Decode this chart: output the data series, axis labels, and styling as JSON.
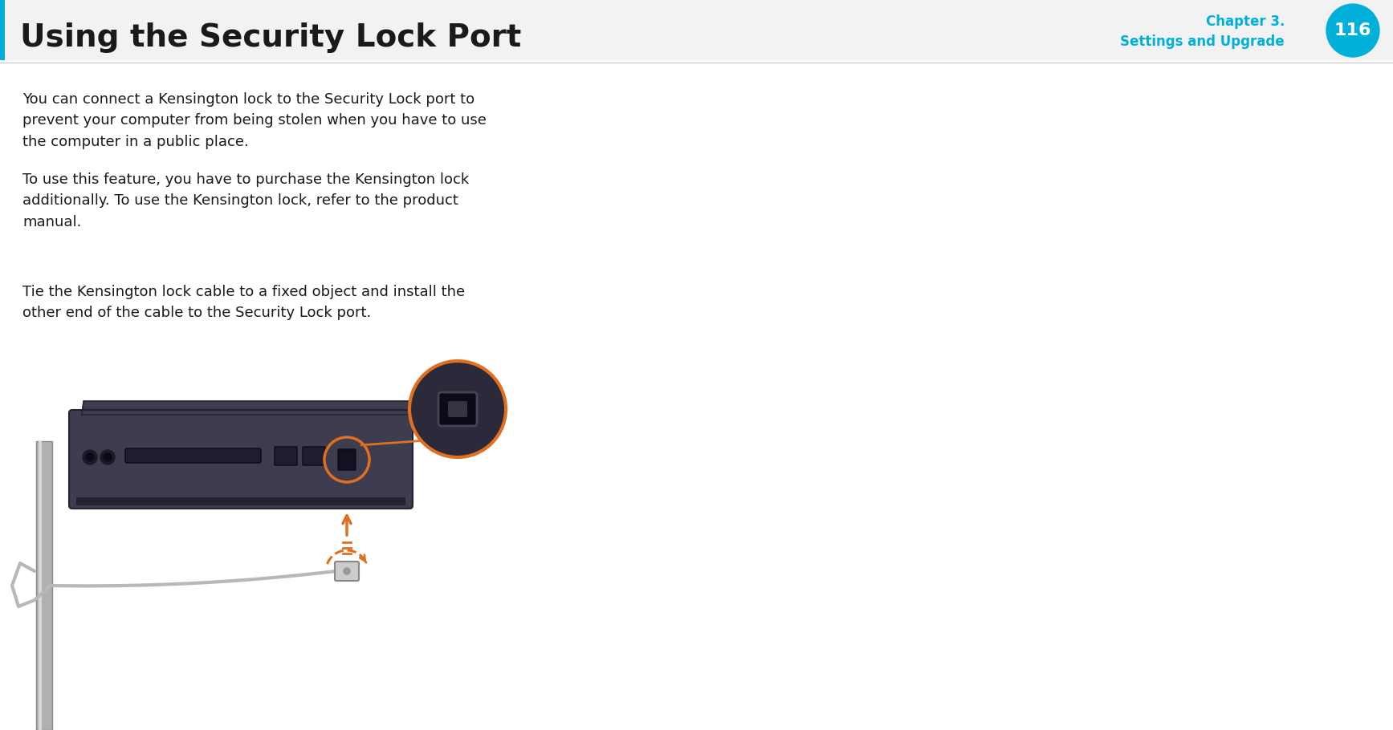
{
  "bg_color": "#ffffff",
  "header_title": "Using the Security Lock Port",
  "header_title_color": "#1a1a1a",
  "header_title_fontsize": 28,
  "header_bar_color": "#00b0d8",
  "header_bg_color": "#f2f2f2",
  "chapter_label_color": "#00b0d8",
  "page_number": "116",
  "page_circle_color": "#00b0d8",
  "page_number_color": "#ffffff",
  "separator_color": "#cccccc",
  "body_text_color": "#1a1a1a",
  "body_fontsize": 13,
  "para1": "You can connect a Kensington lock to the Security Lock port to\nprevent your computer from being stolen when you have to use\nthe computer in a public place.",
  "para2": "To use this feature, you have to purchase the Kensington lock\nadditionally. To use the Kensington lock, refer to the product\nmanual.",
  "para3": "Tie the Kensington lock cable to a fixed object and install the\nother end of the cable to the Security Lock port.",
  "left_bar_color": "#00b0d8",
  "orange_color": "#e07020",
  "laptop_color": "#3d3d4f",
  "laptop_dark": "#222230",
  "cable_color": "#b8b8b8",
  "post_color": "#b0b0b0"
}
